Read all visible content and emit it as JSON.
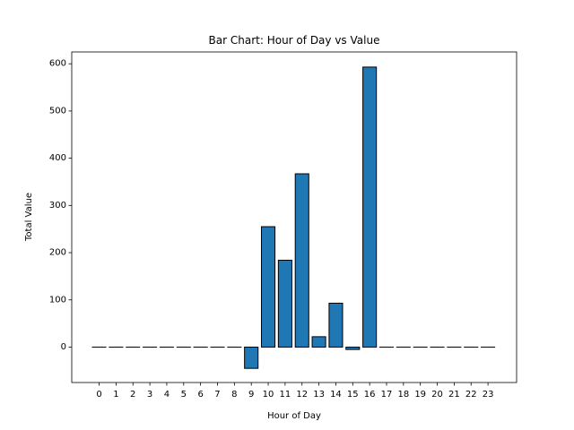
{
  "chart_data": {
    "type": "bar",
    "title": "Bar Chart: Hour of Day vs Value",
    "xlabel": "Hour of Day",
    "ylabel": "Total Value",
    "categories": [
      "0",
      "1",
      "2",
      "3",
      "4",
      "5",
      "6",
      "7",
      "8",
      "9",
      "10",
      "11",
      "12",
      "13",
      "14",
      "15",
      "16",
      "17",
      "18",
      "19",
      "20",
      "21",
      "22",
      "23"
    ],
    "values": [
      0,
      0,
      0,
      0,
      0,
      0,
      0,
      0,
      0,
      -45,
      255,
      184,
      367,
      22,
      93,
      -5,
      593,
      0,
      0,
      0,
      0,
      0,
      0,
      0
    ],
    "ylim": [
      -75,
      625
    ],
    "yticks": [
      0,
      100,
      200,
      300,
      400,
      500,
      600
    ],
    "grid": false,
    "bar_color": "#1f77b4",
    "edge_color": "#000000"
  }
}
